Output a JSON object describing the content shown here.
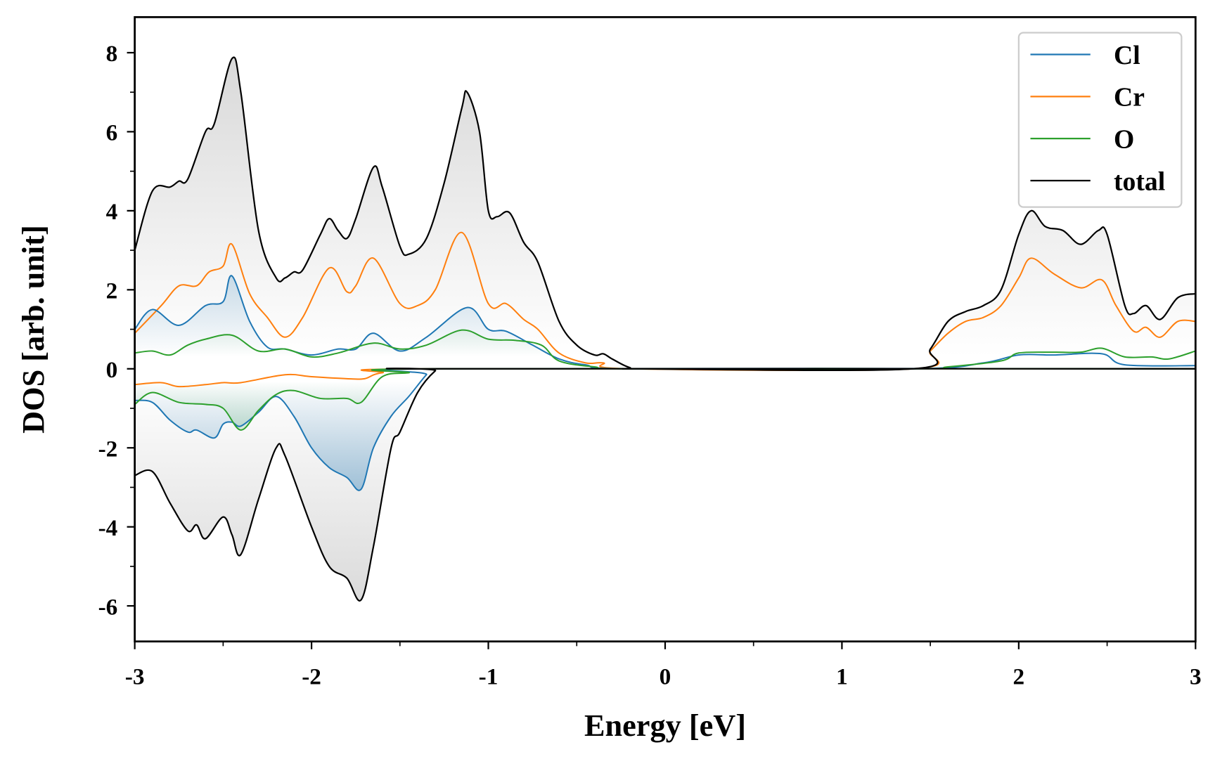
{
  "chart_data": {
    "type": "line",
    "title": "",
    "xlabel": "Energy [eV]",
    "ylabel": "DOS [arb. unit]",
    "xlim": [
      -3,
      3
    ],
    "ylim": [
      -6.9,
      8.9
    ],
    "xticks": [
      -3,
      -2,
      -1,
      0,
      1,
      2,
      3
    ],
    "yticks": [
      -6,
      -4,
      -2,
      0,
      2,
      4,
      6,
      8
    ],
    "grid": false,
    "legend_position": "top-right",
    "series": [
      {
        "name": "total",
        "color": "#000000",
        "fill": "#b0b0b0",
        "up": [
          [
            -3,
            3.0
          ],
          [
            -2.9,
            4.5
          ],
          [
            -2.8,
            4.6
          ],
          [
            -2.75,
            4.75
          ],
          [
            -2.7,
            4.8
          ],
          [
            -2.6,
            6.0
          ],
          [
            -2.55,
            6.2
          ],
          [
            -2.45,
            7.85
          ],
          [
            -2.4,
            7.0
          ],
          [
            -2.3,
            3.5
          ],
          [
            -2.2,
            2.3
          ],
          [
            -2.15,
            2.3
          ],
          [
            -2.1,
            2.45
          ],
          [
            -2.05,
            2.5
          ],
          [
            -1.95,
            3.4
          ],
          [
            -1.9,
            3.8
          ],
          [
            -1.85,
            3.5
          ],
          [
            -1.8,
            3.3
          ],
          [
            -1.75,
            3.8
          ],
          [
            -1.65,
            5.1
          ],
          [
            -1.6,
            4.6
          ],
          [
            -1.5,
            3.1
          ],
          [
            -1.45,
            2.9
          ],
          [
            -1.35,
            3.3
          ],
          [
            -1.25,
            4.7
          ],
          [
            -1.15,
            6.6
          ],
          [
            -1.12,
            7.0
          ],
          [
            -1.05,
            6.0
          ],
          [
            -1.0,
            4.0
          ],
          [
            -0.95,
            3.85
          ],
          [
            -0.88,
            3.95
          ],
          [
            -0.8,
            3.2
          ],
          [
            -0.72,
            2.7
          ],
          [
            -0.6,
            1.2
          ],
          [
            -0.5,
            0.6
          ],
          [
            -0.4,
            0.35
          ],
          [
            -0.35,
            0.38
          ],
          [
            -0.3,
            0.25
          ],
          [
            -0.2,
            0.03
          ],
          [
            -0.1,
            0
          ],
          [
            1.4,
            0
          ],
          [
            1.5,
            0.5
          ],
          [
            1.6,
            1.2
          ],
          [
            1.7,
            1.45
          ],
          [
            1.8,
            1.6
          ],
          [
            1.9,
            2.0
          ],
          [
            2.0,
            3.4
          ],
          [
            2.07,
            4.0
          ],
          [
            2.15,
            3.6
          ],
          [
            2.25,
            3.5
          ],
          [
            2.35,
            3.15
          ],
          [
            2.45,
            3.5
          ],
          [
            2.5,
            3.4
          ],
          [
            2.6,
            1.6
          ],
          [
            2.65,
            1.4
          ],
          [
            2.72,
            1.6
          ],
          [
            2.8,
            1.25
          ],
          [
            2.9,
            1.8
          ],
          [
            3.0,
            1.9
          ]
        ],
        "down": [
          [
            -3,
            -2.7
          ],
          [
            -2.9,
            -2.6
          ],
          [
            -2.8,
            -3.4
          ],
          [
            -2.7,
            -4.1
          ],
          [
            -2.65,
            -3.95
          ],
          [
            -2.6,
            -4.3
          ],
          [
            -2.5,
            -3.75
          ],
          [
            -2.45,
            -4.2
          ],
          [
            -2.4,
            -4.7
          ],
          [
            -2.3,
            -3.3
          ],
          [
            -2.2,
            -2.0
          ],
          [
            -2.15,
            -2.2
          ],
          [
            -2.0,
            -4.0
          ],
          [
            -1.9,
            -5.0
          ],
          [
            -1.8,
            -5.3
          ],
          [
            -1.72,
            -5.85
          ],
          [
            -1.65,
            -4.5
          ],
          [
            -1.55,
            -2.0
          ],
          [
            -1.5,
            -1.6
          ],
          [
            -1.4,
            -0.6
          ],
          [
            -1.3,
            -0.05
          ],
          [
            -1.25,
            0
          ],
          [
            3,
            0
          ]
        ]
      },
      {
        "name": "Cr",
        "color": "#ff7f0e",
        "fill": null,
        "up": [
          [
            -3,
            0.9
          ],
          [
            -2.85,
            1.6
          ],
          [
            -2.75,
            2.1
          ],
          [
            -2.65,
            2.1
          ],
          [
            -2.58,
            2.45
          ],
          [
            -2.5,
            2.6
          ],
          [
            -2.45,
            3.15
          ],
          [
            -2.35,
            1.9
          ],
          [
            -2.25,
            1.3
          ],
          [
            -2.15,
            0.8
          ],
          [
            -2.05,
            1.3
          ],
          [
            -1.9,
            2.55
          ],
          [
            -1.8,
            1.95
          ],
          [
            -1.75,
            2.1
          ],
          [
            -1.65,
            2.8
          ],
          [
            -1.5,
            1.65
          ],
          [
            -1.4,
            1.6
          ],
          [
            -1.3,
            2.0
          ],
          [
            -1.15,
            3.45
          ],
          [
            -1.0,
            1.65
          ],
          [
            -0.9,
            1.65
          ],
          [
            -0.8,
            1.25
          ],
          [
            -0.72,
            1.0
          ],
          [
            -0.6,
            0.4
          ],
          [
            -0.45,
            0.15
          ],
          [
            -0.35,
            0.15
          ],
          [
            -0.2,
            0
          ],
          [
            1.4,
            0
          ],
          [
            1.5,
            0.45
          ],
          [
            1.6,
            0.9
          ],
          [
            1.7,
            1.2
          ],
          [
            1.8,
            1.3
          ],
          [
            1.9,
            1.6
          ],
          [
            2.0,
            2.3
          ],
          [
            2.07,
            2.8
          ],
          [
            2.2,
            2.4
          ],
          [
            2.35,
            2.05
          ],
          [
            2.47,
            2.25
          ],
          [
            2.55,
            1.6
          ],
          [
            2.65,
            0.95
          ],
          [
            2.72,
            1.05
          ],
          [
            2.8,
            0.8
          ],
          [
            2.9,
            1.2
          ],
          [
            3,
            1.2
          ]
        ],
        "down": [
          [
            -3,
            -0.4
          ],
          [
            -2.85,
            -0.35
          ],
          [
            -2.75,
            -0.45
          ],
          [
            -2.6,
            -0.4
          ],
          [
            -2.5,
            -0.35
          ],
          [
            -2.4,
            -0.35
          ],
          [
            -2.15,
            -0.15
          ],
          [
            -2.0,
            -0.2
          ],
          [
            -1.8,
            -0.25
          ],
          [
            -1.7,
            -0.25
          ],
          [
            -1.6,
            -0.1
          ],
          [
            -1.3,
            0
          ],
          [
            3,
            0
          ]
        ]
      },
      {
        "name": "Cl",
        "color": "#1f77b4",
        "fill": "#1f77b4",
        "up": [
          [
            -3,
            1.0
          ],
          [
            -2.9,
            1.5
          ],
          [
            -2.75,
            1.1
          ],
          [
            -2.6,
            1.6
          ],
          [
            -2.5,
            1.7
          ],
          [
            -2.45,
            2.35
          ],
          [
            -2.35,
            1.2
          ],
          [
            -2.25,
            0.55
          ],
          [
            -2.15,
            0.5
          ],
          [
            -2.0,
            0.35
          ],
          [
            -1.85,
            0.5
          ],
          [
            -1.75,
            0.5
          ],
          [
            -1.65,
            0.9
          ],
          [
            -1.5,
            0.45
          ],
          [
            -1.35,
            0.8
          ],
          [
            -1.12,
            1.55
          ],
          [
            -1.0,
            1.0
          ],
          [
            -0.9,
            0.95
          ],
          [
            -0.75,
            0.6
          ],
          [
            -0.6,
            0.25
          ],
          [
            -0.45,
            0.1
          ],
          [
            -0.2,
            0
          ],
          [
            1.4,
            0
          ],
          [
            1.8,
            0.15
          ],
          [
            2.0,
            0.35
          ],
          [
            2.2,
            0.35
          ],
          [
            2.47,
            0.38
          ],
          [
            2.6,
            0.1
          ],
          [
            3,
            0.08
          ]
        ],
        "down": [
          [
            -3,
            -0.8
          ],
          [
            -2.9,
            -0.85
          ],
          [
            -2.8,
            -1.3
          ],
          [
            -2.7,
            -1.6
          ],
          [
            -2.65,
            -1.55
          ],
          [
            -2.55,
            -1.75
          ],
          [
            -2.5,
            -1.4
          ],
          [
            -2.45,
            -1.35
          ],
          [
            -2.4,
            -1.45
          ],
          [
            -2.3,
            -1.1
          ],
          [
            -2.2,
            -0.7
          ],
          [
            -2.1,
            -1.2
          ],
          [
            -2.0,
            -2.0
          ],
          [
            -1.9,
            -2.5
          ],
          [
            -1.8,
            -2.75
          ],
          [
            -1.72,
            -3.05
          ],
          [
            -1.65,
            -2.0
          ],
          [
            -1.55,
            -1.2
          ],
          [
            -1.45,
            -0.7
          ],
          [
            -1.35,
            -0.15
          ],
          [
            -1.3,
            0
          ],
          [
            3,
            0
          ]
        ]
      },
      {
        "name": "O",
        "color": "#2ca02c",
        "fill": "#2ca02c",
        "up": [
          [
            -3,
            0.4
          ],
          [
            -2.9,
            0.45
          ],
          [
            -2.8,
            0.35
          ],
          [
            -2.7,
            0.6
          ],
          [
            -2.6,
            0.75
          ],
          [
            -2.45,
            0.85
          ],
          [
            -2.3,
            0.45
          ],
          [
            -2.15,
            0.5
          ],
          [
            -2.0,
            0.3
          ],
          [
            -1.85,
            0.4
          ],
          [
            -1.65,
            0.65
          ],
          [
            -1.5,
            0.5
          ],
          [
            -1.35,
            0.6
          ],
          [
            -1.15,
            0.98
          ],
          [
            -1.0,
            0.75
          ],
          [
            -0.85,
            0.72
          ],
          [
            -0.7,
            0.6
          ],
          [
            -0.6,
            0.2
          ],
          [
            -0.4,
            0.05
          ],
          [
            -0.2,
            0
          ],
          [
            1.4,
            0
          ],
          [
            1.6,
            0.05
          ],
          [
            1.9,
            0.2
          ],
          [
            2.0,
            0.4
          ],
          [
            2.2,
            0.42
          ],
          [
            2.35,
            0.42
          ],
          [
            2.47,
            0.52
          ],
          [
            2.6,
            0.3
          ],
          [
            2.75,
            0.3
          ],
          [
            2.85,
            0.25
          ],
          [
            3,
            0.45
          ]
        ],
        "down": [
          [
            -3,
            -0.9
          ],
          [
            -2.9,
            -0.6
          ],
          [
            -2.75,
            -0.85
          ],
          [
            -2.6,
            -0.9
          ],
          [
            -2.5,
            -1.0
          ],
          [
            -2.4,
            -1.55
          ],
          [
            -2.3,
            -1.05
          ],
          [
            -2.2,
            -0.65
          ],
          [
            -2.1,
            -0.55
          ],
          [
            -1.95,
            -0.75
          ],
          [
            -1.8,
            -0.75
          ],
          [
            -1.72,
            -0.85
          ],
          [
            -1.6,
            -0.2
          ],
          [
            -1.45,
            -0.1
          ],
          [
            -1.3,
            0
          ],
          [
            3,
            0
          ]
        ]
      }
    ],
    "legend": [
      "Cl",
      "Cr",
      "O",
      "total"
    ]
  }
}
